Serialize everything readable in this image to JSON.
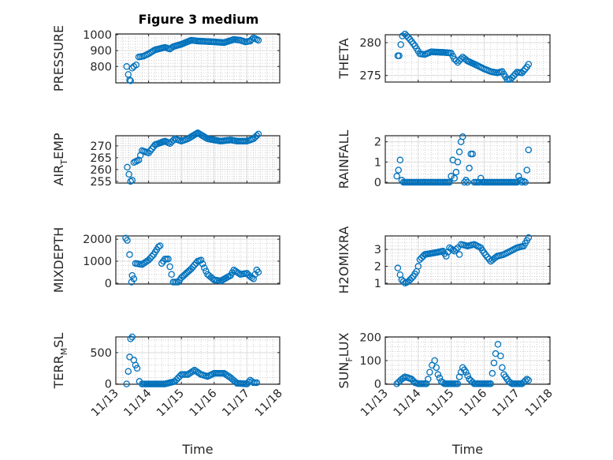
{
  "title": "Figure 3 medium",
  "xlabel": "Time",
  "x_tick_labels": [
    "11/13",
    "11/14",
    "11/15",
    "11/16",
    "11/17",
    "11/18"
  ],
  "marker_color": "#0072BD",
  "chart_data": [
    {
      "type": "scatter",
      "ylabel": {
        "main": "PRESSURE",
        "sub": "",
        "rest": ""
      },
      "ylim": [
        697,
        1005
      ],
      "yticks": [
        800,
        900,
        1000
      ],
      "xlim_days": [
        0,
        5
      ],
      "points": [
        [
          0.33,
          800
        ],
        [
          0.38,
          750
        ],
        [
          0.42,
          715
        ],
        [
          0.45,
          710
        ],
        [
          0.5,
          790
        ],
        [
          0.55,
          800
        ],
        [
          0.62,
          810
        ],
        [
          0.7,
          860
        ],
        [
          0.85,
          865
        ],
        [
          1.0,
          880
        ],
        [
          1.2,
          905
        ],
        [
          1.5,
          920
        ],
        [
          1.65,
          910
        ],
        [
          1.75,
          925
        ],
        [
          2.0,
          940
        ],
        [
          2.3,
          965
        ],
        [
          2.5,
          960
        ],
        [
          3.0,
          955
        ],
        [
          3.3,
          950
        ],
        [
          3.6,
          970
        ],
        [
          3.8,
          965
        ],
        [
          3.95,
          955
        ],
        [
          4.1,
          960
        ],
        [
          4.2,
          980
        ],
        [
          4.3,
          970
        ],
        [
          4.35,
          965
        ]
      ]
    },
    {
      "type": "scatter",
      "ylabel": {
        "main": "THETA",
        "sub": "",
        "rest": ""
      },
      "ylim": [
        274,
        281.2
      ],
      "yticks": [
        275,
        280
      ],
      "xlim_days": [
        0,
        5
      ],
      "points": [
        [
          0.38,
          278
        ],
        [
          0.42,
          278
        ],
        [
          0.47,
          279.7
        ],
        [
          0.52,
          281
        ],
        [
          0.6,
          281.3
        ],
        [
          0.75,
          280.5
        ],
        [
          0.9,
          279.5
        ],
        [
          1.05,
          278.3
        ],
        [
          1.2,
          278.2
        ],
        [
          1.4,
          278.6
        ],
        [
          1.8,
          278.5
        ],
        [
          2.0,
          278.4
        ],
        [
          2.1,
          277.5
        ],
        [
          2.2,
          277.0
        ],
        [
          2.35,
          277.8
        ],
        [
          2.5,
          277.2
        ],
        [
          2.8,
          276.5
        ],
        [
          3.0,
          276
        ],
        [
          3.2,
          275.6
        ],
        [
          3.4,
          275.4
        ],
        [
          3.55,
          275.6
        ],
        [
          3.7,
          274.4
        ],
        [
          3.8,
          274.4
        ],
        [
          4.0,
          275.5
        ],
        [
          4.15,
          275.4
        ],
        [
          4.3,
          276.3
        ],
        [
          4.35,
          276.7
        ]
      ]
    },
    {
      "type": "scatter",
      "ylabel": {
        "main": "AIR",
        "sub": "T",
        "rest": "EMP"
      },
      "ylim": [
        254.3,
        274.3
      ],
      "yticks": [
        255,
        260,
        265,
        270
      ],
      "xlim_days": [
        0,
        5
      ],
      "points": [
        [
          0.35,
          261
        ],
        [
          0.4,
          258
        ],
        [
          0.45,
          255
        ],
        [
          0.5,
          255.5
        ],
        [
          0.55,
          263
        ],
        [
          0.7,
          264
        ],
        [
          0.8,
          268
        ],
        [
          1.0,
          267
        ],
        [
          1.2,
          270.5
        ],
        [
          1.5,
          272
        ],
        [
          1.65,
          271
        ],
        [
          1.8,
          273
        ],
        [
          2.0,
          272
        ],
        [
          2.2,
          273
        ],
        [
          2.5,
          275.5
        ],
        [
          2.8,
          273
        ],
        [
          3.2,
          272
        ],
        [
          3.5,
          272.5
        ],
        [
          3.7,
          272
        ],
        [
          4.0,
          272
        ],
        [
          4.2,
          273
        ],
        [
          4.35,
          275
        ]
      ]
    },
    {
      "type": "scatter",
      "ylabel": {
        "main": "RAINFALL",
        "sub": "",
        "rest": ""
      },
      "ylim": [
        -0.04,
        2.3
      ],
      "yticks": [
        0,
        1,
        2
      ],
      "xlim_days": [
        0,
        5
      ],
      "points": [
        [
          0.35,
          0.3
        ],
        [
          0.4,
          0.6
        ],
        [
          0.45,
          1.1
        ],
        [
          0.5,
          0.1
        ],
        [
          0.55,
          0
        ],
        [
          1.95,
          0
        ],
        [
          2.0,
          0.3
        ],
        [
          2.05,
          1.1
        ],
        [
          2.1,
          0.2
        ],
        [
          2.15,
          0.5
        ],
        [
          2.2,
          1.0
        ],
        [
          2.25,
          1.5
        ],
        [
          2.3,
          2.0
        ],
        [
          2.35,
          2.25
        ],
        [
          2.4,
          0.0
        ],
        [
          2.45,
          0.1
        ],
        [
          2.5,
          0.0
        ],
        [
          2.55,
          0.7
        ],
        [
          2.6,
          1.4
        ],
        [
          2.65,
          1.4
        ],
        [
          2.7,
          0
        ],
        [
          2.85,
          0
        ],
        [
          2.9,
          0.2
        ],
        [
          2.95,
          0
        ],
        [
          4.0,
          0
        ],
        [
          4.05,
          0.3
        ],
        [
          4.1,
          0.1
        ],
        [
          4.15,
          0
        ],
        [
          4.2,
          0.05
        ],
        [
          4.25,
          0
        ],
        [
          4.3,
          0.6
        ],
        [
          4.35,
          1.6
        ]
      ]
    },
    {
      "type": "scatter",
      "ylabel": {
        "main": "MIXDEPTH",
        "sub": "",
        "rest": ""
      },
      "ylim": [
        -40,
        2150
      ],
      "yticks": [
        0,
        1000,
        2000
      ],
      "xlim_days": [
        0,
        5
      ],
      "points": [
        [
          0.3,
          2050
        ],
        [
          0.35,
          1950
        ],
        [
          0.42,
          1300
        ],
        [
          0.48,
          50
        ],
        [
          0.5,
          350
        ],
        [
          0.55,
          200
        ],
        [
          0.6,
          900
        ],
        [
          0.8,
          850
        ],
        [
          1.0,
          1050
        ],
        [
          1.15,
          1300
        ],
        [
          1.3,
          1650
        ],
        [
          1.35,
          1700
        ],
        [
          1.4,
          900
        ],
        [
          1.5,
          1100
        ],
        [
          1.6,
          1100
        ],
        [
          1.7,
          400
        ],
        [
          1.75,
          50
        ],
        [
          1.9,
          50
        ],
        [
          2.0,
          250
        ],
        [
          2.3,
          650
        ],
        [
          2.5,
          1000
        ],
        [
          2.6,
          1050
        ],
        [
          2.7,
          700
        ],
        [
          2.8,
          400
        ],
        [
          3.0,
          150
        ],
        [
          3.2,
          100
        ],
        [
          3.5,
          350
        ],
        [
          3.6,
          600
        ],
        [
          3.8,
          400
        ],
        [
          4.0,
          450
        ],
        [
          4.1,
          300
        ],
        [
          4.2,
          200
        ],
        [
          4.3,
          600
        ],
        [
          4.35,
          500
        ]
      ]
    },
    {
      "type": "scatter",
      "ylabel": {
        "main": "H2OMIXRA",
        "sub": "",
        "rest": ""
      },
      "ylim": [
        0.95,
        3.8
      ],
      "yticks": [
        1,
        2,
        3
      ],
      "xlim_days": [
        0,
        5
      ],
      "points": [
        [
          0.38,
          1.9
        ],
        [
          0.45,
          1.5
        ],
        [
          0.5,
          1.2
        ],
        [
          0.6,
          1.0
        ],
        [
          0.7,
          1.1
        ],
        [
          0.85,
          1.4
        ],
        [
          0.95,
          1.7
        ],
        [
          1.0,
          2.0
        ],
        [
          1.05,
          2.4
        ],
        [
          1.2,
          2.7
        ],
        [
          1.5,
          2.8
        ],
        [
          1.75,
          2.9
        ],
        [
          1.85,
          2.6
        ],
        [
          1.95,
          3.1
        ],
        [
          2.1,
          2.9
        ],
        [
          2.2,
          3.1
        ],
        [
          2.25,
          2.7
        ],
        [
          2.3,
          3.3
        ],
        [
          2.5,
          3.2
        ],
        [
          2.7,
          3.3
        ],
        [
          2.9,
          3.1
        ],
        [
          3.0,
          2.8
        ],
        [
          3.2,
          2.3
        ],
        [
          3.4,
          2.6
        ],
        [
          3.6,
          2.7
        ],
        [
          3.8,
          2.9
        ],
        [
          4.0,
          3.1
        ],
        [
          4.2,
          3.2
        ],
        [
          4.35,
          3.7
        ]
      ]
    },
    {
      "type": "scatter",
      "ylabel": {
        "main": "TERR",
        "sub": "M",
        "rest": "SL"
      },
      "ylim": [
        -5,
        750
      ],
      "yticks": [
        0,
        500
      ],
      "xlim_days": [
        0,
        5
      ],
      "points": [
        [
          0.33,
          0
        ],
        [
          0.38,
          200
        ],
        [
          0.42,
          430
        ],
        [
          0.45,
          720
        ],
        [
          0.5,
          750
        ],
        [
          0.55,
          380
        ],
        [
          0.6,
          300
        ],
        [
          0.65,
          250
        ],
        [
          0.72,
          40
        ],
        [
          0.8,
          0
        ],
        [
          1.5,
          0
        ],
        [
          1.8,
          40
        ],
        [
          2.0,
          150
        ],
        [
          2.2,
          150
        ],
        [
          2.4,
          220
        ],
        [
          2.6,
          150
        ],
        [
          2.8,
          120
        ],
        [
          3.0,
          170
        ],
        [
          3.3,
          170
        ],
        [
          3.5,
          100
        ],
        [
          3.7,
          10
        ],
        [
          4.0,
          0
        ],
        [
          4.1,
          60
        ],
        [
          4.2,
          20
        ],
        [
          4.3,
          20
        ]
      ]
    },
    {
      "type": "scatter",
      "ylabel": {
        "main": "SUN",
        "sub": "F",
        "rest": "LUX"
      },
      "ylim": [
        -2,
        202
      ],
      "yticks": [
        0,
        100,
        200
      ],
      "xlim_days": [
        0,
        5
      ],
      "points": [
        [
          0.35,
          0
        ],
        [
          0.5,
          20
        ],
        [
          0.6,
          30
        ],
        [
          0.8,
          20
        ],
        [
          0.9,
          5
        ],
        [
          1.0,
          0
        ],
        [
          1.25,
          0
        ],
        [
          1.3,
          20
        ],
        [
          1.35,
          50
        ],
        [
          1.42,
          80
        ],
        [
          1.5,
          100
        ],
        [
          1.55,
          70
        ],
        [
          1.6,
          40
        ],
        [
          1.7,
          10
        ],
        [
          1.8,
          0
        ],
        [
          2.2,
          0
        ],
        [
          2.25,
          30
        ],
        [
          2.35,
          70
        ],
        [
          2.45,
          50
        ],
        [
          2.55,
          20
        ],
        [
          2.7,
          0
        ],
        [
          3.2,
          0
        ],
        [
          3.25,
          45
        ],
        [
          3.3,
          90
        ],
        [
          3.35,
          130
        ],
        [
          3.42,
          170
        ],
        [
          3.5,
          120
        ],
        [
          3.55,
          70
        ],
        [
          3.6,
          40
        ],
        [
          3.75,
          10
        ],
        [
          3.85,
          0
        ],
        [
          4.15,
          0
        ],
        [
          4.3,
          20
        ],
        [
          4.35,
          15
        ]
      ]
    }
  ]
}
